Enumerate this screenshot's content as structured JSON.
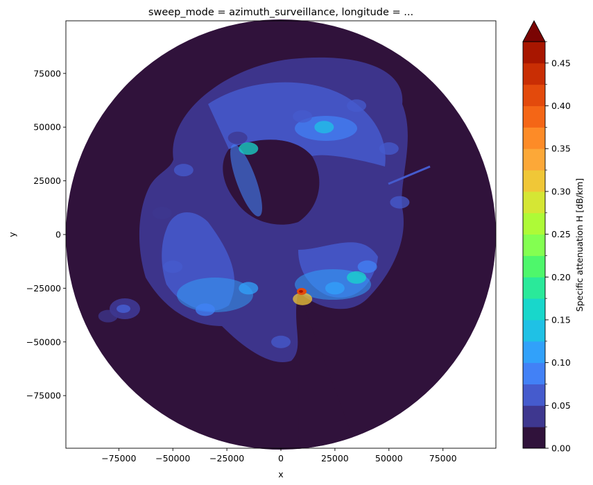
{
  "chart_data": {
    "type": "heatmap",
    "title": "sweep_mode = azimuth_surveillance, longitude = ...",
    "xlabel": "x",
    "ylabel": "y",
    "xlim": [
      -99500,
      99500
    ],
    "ylim": [
      -99500,
      99500
    ],
    "xticks": [
      -75000,
      -50000,
      -25000,
      0,
      25000,
      50000,
      75000
    ],
    "xtick_labels": [
      "−75000",
      "−50000",
      "−25000",
      "0",
      "25000",
      "50000",
      "75000"
    ],
    "yticks": [
      75000,
      50000,
      25000,
      0,
      -25000,
      -50000,
      -75000
    ],
    "ytick_labels": [
      "75000",
      "50000",
      "25000",
      "0",
      "−25000",
      "−50000",
      "−75000"
    ],
    "data_range_radius": 99500,
    "colorbar": {
      "label": "Specific attenuation H [dB/km]",
      "extend": "max",
      "levels": [
        0.0,
        0.025,
        0.05,
        0.075,
        0.1,
        0.125,
        0.15,
        0.175,
        0.2,
        0.225,
        0.25,
        0.275,
        0.3,
        0.325,
        0.35,
        0.375,
        0.4,
        0.425,
        0.45,
        0.475
      ],
      "colors": [
        "#30123b",
        "#3e378f",
        "#455bcd",
        "#4281f6",
        "#31a1fa",
        "#1fc1e5",
        "#18d7cb",
        "#2ae99a",
        "#4ef76b",
        "#83ff51",
        "#aefa37",
        "#d5e634",
        "#f0c737",
        "#fca838",
        "#fd8b27",
        "#f46616",
        "#e34a0c",
        "#c92e04",
        "#a81600"
      ],
      "extend_color": "#7a0403",
      "ticks": [
        0.0,
        0.05,
        0.1,
        0.15,
        0.2,
        0.25,
        0.3,
        0.35,
        0.4,
        0.45
      ],
      "tick_labels": [
        "0.00",
        "0.05",
        "0.10",
        "0.15",
        "0.20",
        "0.25",
        "0.30",
        "0.35",
        "0.40",
        "0.45"
      ]
    },
    "echo_regions": [
      {
        "x": -20000,
        "y": 45000,
        "value": 0.04
      },
      {
        "x": 10000,
        "y": 55000,
        "value": 0.05
      },
      {
        "x": 35000,
        "y": 60000,
        "value": 0.06
      },
      {
        "x": 50000,
        "y": 40000,
        "value": 0.06
      },
      {
        "x": 55000,
        "y": 15000,
        "value": 0.05
      },
      {
        "x": 40000,
        "y": -15000,
        "value": 0.08
      },
      {
        "x": 25000,
        "y": -25000,
        "value": 0.11
      },
      {
        "x": 10000,
        "y": -30000,
        "value": 0.3
      },
      {
        "x": -15000,
        "y": -25000,
        "value": 0.1
      },
      {
        "x": -35000,
        "y": -35000,
        "value": 0.08
      },
      {
        "x": -50000,
        "y": -15000,
        "value": 0.05
      },
      {
        "x": -55000,
        "y": 10000,
        "value": 0.04
      },
      {
        "x": -45000,
        "y": 30000,
        "value": 0.05
      },
      {
        "x": -80000,
        "y": -38000,
        "value": 0.04
      },
      {
        "x": 0,
        "y": -50000,
        "value": 0.05
      },
      {
        "x": 20000,
        "y": 50000,
        "value": 0.14
      },
      {
        "x": -15000,
        "y": 40000,
        "value": 0.15
      },
      {
        "x": 35000,
        "y": -20000,
        "value": 0.17
      }
    ]
  }
}
